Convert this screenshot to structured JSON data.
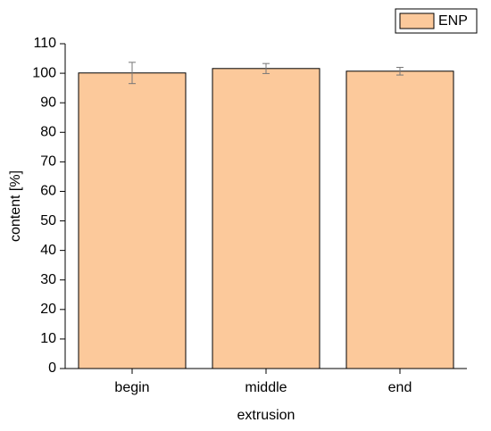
{
  "chart_data": {
    "type": "bar",
    "x_label": "extrusion",
    "y_label": "content [%]",
    "categories": [
      "begin",
      "middle",
      "end"
    ],
    "series": [
      {
        "name": "ENP",
        "color": "#fcc99b",
        "values": [
          100.1,
          101.6,
          100.7
        ],
        "errors": [
          3.6,
          1.7,
          1.3
        ]
      }
    ],
    "ylim": [
      0,
      110
    ],
    "yticks": [
      0,
      10,
      20,
      30,
      40,
      50,
      60,
      70,
      80,
      90,
      100,
      110
    ],
    "legend": "top-right"
  }
}
